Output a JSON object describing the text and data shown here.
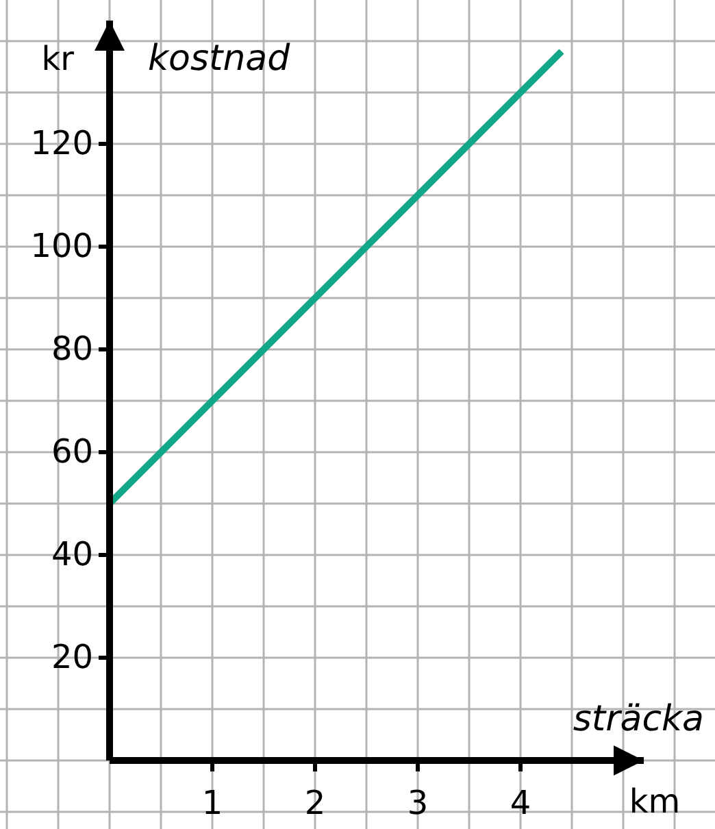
{
  "chart_data": {
    "type": "line",
    "xlabel": "sträcka",
    "ylabel": "kostnad",
    "annotations": [
      "kr",
      "km"
    ],
    "x": [
      0,
      4.4
    ],
    "series": [
      {
        "color": "#13a689",
        "values": [
          50,
          138
        ]
      }
    ],
    "xlim": [
      0,
      5.2
    ],
    "ylim": [
      0,
      144
    ],
    "xticks": [
      1,
      2,
      3,
      4
    ],
    "yticks": [
      20,
      40,
      60,
      80,
      100,
      120
    ],
    "grid": true,
    "marker": "none",
    "line_style": "solid"
  }
}
